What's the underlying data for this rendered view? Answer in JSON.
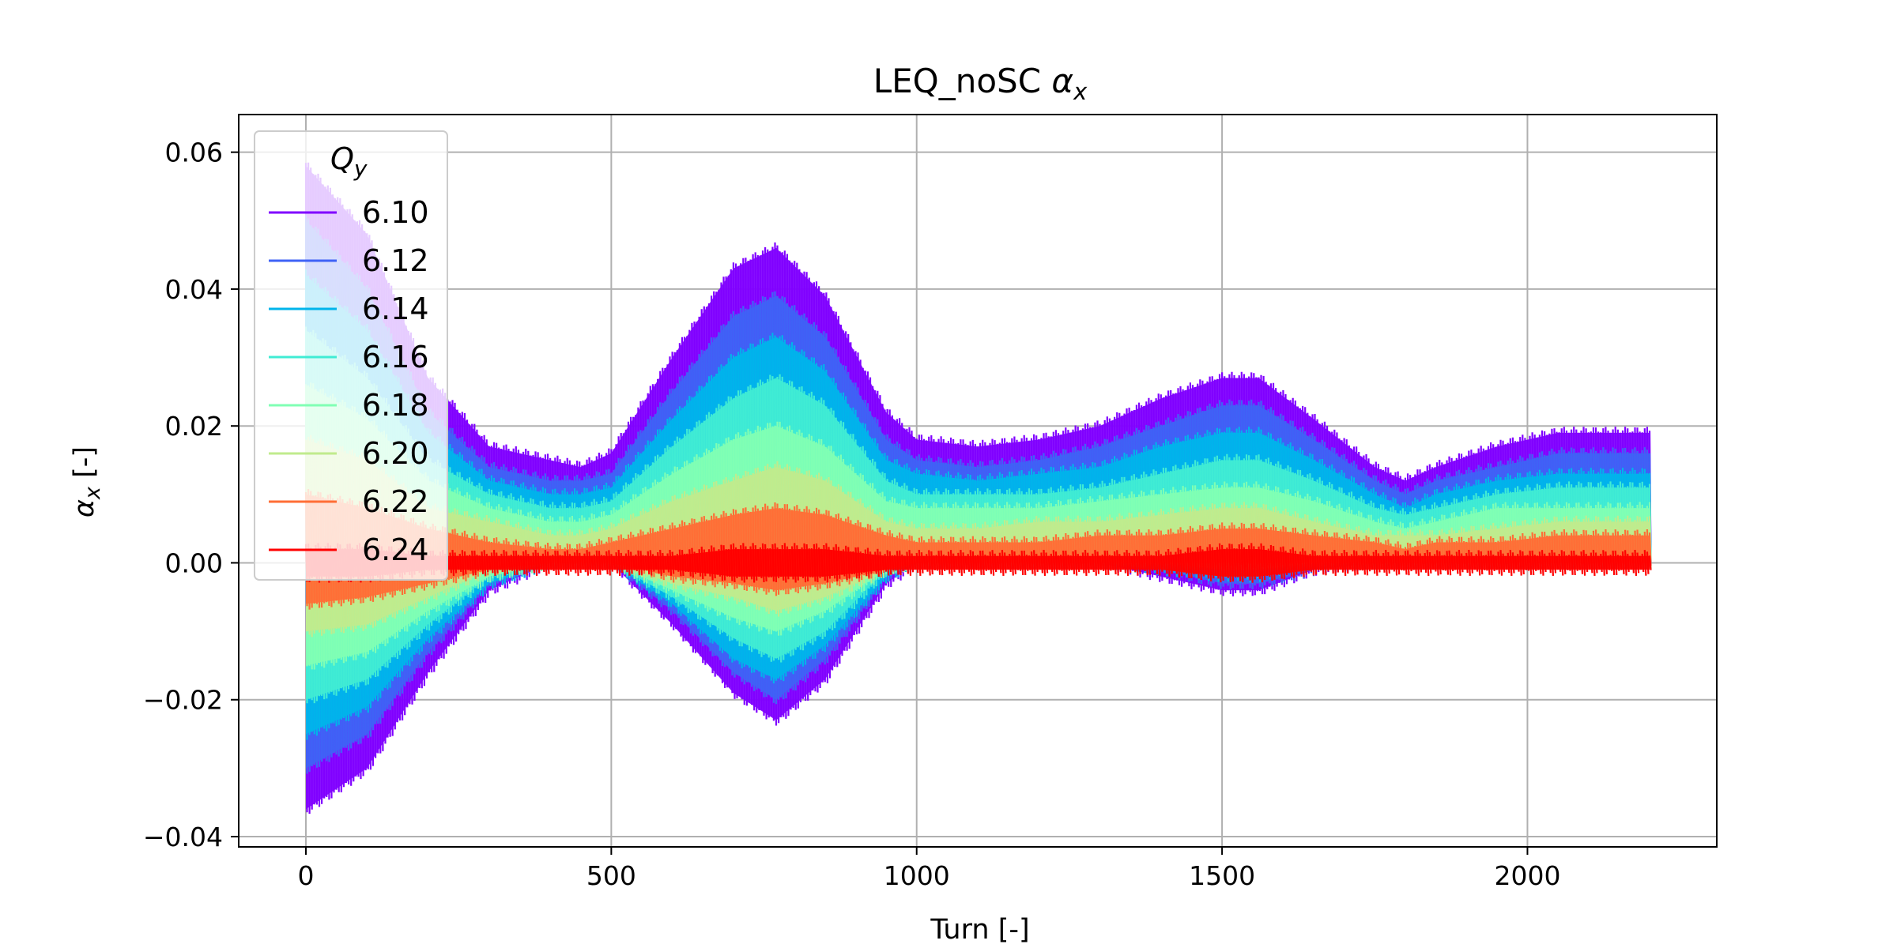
{
  "chart_data": {
    "type": "line",
    "title": "LEQ_noSC",
    "title_symbol": "α",
    "title_symbol_sub": "x",
    "xlabel": "Turn [-]",
    "ylabel_symbol": "α",
    "ylabel_symbol_sub": "x",
    "ylabel_suffix": " [-]",
    "xlim": [
      -110,
      2310
    ],
    "ylim": [
      -0.0415,
      0.0655
    ],
    "xticks": [
      0,
      500,
      1000,
      1500,
      2000
    ],
    "xtick_labels": [
      "0",
      "500",
      "1000",
      "1500",
      "2000"
    ],
    "yticks": [
      -0.04,
      -0.02,
      0.0,
      0.02,
      0.04,
      0.06
    ],
    "ytick_labels": [
      "−0.04",
      "−0.02",
      "0.00",
      "0.02",
      "0.04",
      "0.06"
    ],
    "grid": true,
    "legend": {
      "title": "Q",
      "title_sub": "y",
      "placement": "upper-left"
    },
    "oscillation_half_width": 0.0018,
    "x": [
      0,
      100,
      200,
      300,
      400,
      450,
      500,
      600,
      700,
      770,
      850,
      950,
      1000,
      1100,
      1200,
      1300,
      1400,
      1500,
      1560,
      1650,
      1750,
      1800,
      1850,
      1950,
      2050,
      2150,
      2200
    ],
    "series": [
      {
        "name": "6.10",
        "color": "#8000ff",
        "upper": [
          0.058,
          0.048,
          0.027,
          0.017,
          0.015,
          0.014,
          0.016,
          0.03,
          0.043,
          0.046,
          0.039,
          0.022,
          0.018,
          0.017,
          0.018,
          0.02,
          0.024,
          0.027,
          0.027,
          0.021,
          0.014,
          0.012,
          0.014,
          0.017,
          0.019,
          0.019,
          0.019
        ],
        "lower": [
          -0.036,
          -0.03,
          -0.016,
          -0.004,
          0.0,
          0.0,
          0.0,
          -0.009,
          -0.019,
          -0.023,
          -0.017,
          -0.003,
          0.0,
          0.0,
          0.0,
          0.0,
          -0.002,
          -0.004,
          -0.004,
          -0.001,
          0.0,
          0.0,
          0.0,
          0.0,
          0.0,
          0.0,
          0.0
        ]
      },
      {
        "name": "6.12",
        "color": "#3f62f6",
        "upper": [
          0.05,
          0.04,
          0.022,
          0.014,
          0.012,
          0.012,
          0.013,
          0.025,
          0.036,
          0.039,
          0.033,
          0.018,
          0.015,
          0.014,
          0.015,
          0.017,
          0.02,
          0.023,
          0.023,
          0.018,
          0.012,
          0.01,
          0.012,
          0.014,
          0.016,
          0.016,
          0.016
        ],
        "lower": [
          -0.03,
          -0.025,
          -0.013,
          -0.003,
          0.0,
          0.0,
          0.0,
          -0.007,
          -0.016,
          -0.02,
          -0.014,
          -0.002,
          0.0,
          0.0,
          0.0,
          0.0,
          -0.001,
          -0.003,
          -0.003,
          -0.001,
          0.0,
          0.0,
          0.0,
          0.0,
          0.0,
          0.0,
          0.0
        ]
      },
      {
        "name": "6.14",
        "color": "#00b4eb",
        "upper": [
          0.042,
          0.034,
          0.019,
          0.012,
          0.01,
          0.01,
          0.011,
          0.021,
          0.03,
          0.033,
          0.028,
          0.015,
          0.013,
          0.012,
          0.013,
          0.014,
          0.017,
          0.019,
          0.019,
          0.015,
          0.01,
          0.008,
          0.01,
          0.012,
          0.013,
          0.013,
          0.013
        ],
        "lower": [
          -0.025,
          -0.021,
          -0.011,
          -0.003,
          0.0,
          0.0,
          0.0,
          -0.006,
          -0.014,
          -0.017,
          -0.012,
          -0.002,
          0.0,
          0.0,
          0.0,
          0.0,
          -0.001,
          -0.002,
          -0.002,
          0.0,
          0.0,
          0.0,
          0.0,
          0.0,
          0.0,
          0.0,
          0.0
        ]
      },
      {
        "name": "6.16",
        "color": "#40ecd4",
        "upper": [
          0.034,
          0.027,
          0.015,
          0.01,
          0.008,
          0.008,
          0.009,
          0.017,
          0.024,
          0.027,
          0.023,
          0.012,
          0.01,
          0.01,
          0.01,
          0.011,
          0.013,
          0.015,
          0.015,
          0.012,
          0.008,
          0.007,
          0.008,
          0.01,
          0.011,
          0.011,
          0.011
        ],
        "lower": [
          -0.02,
          -0.017,
          -0.009,
          -0.002,
          0.0,
          0.0,
          0.0,
          -0.005,
          -0.011,
          -0.014,
          -0.01,
          -0.001,
          0.0,
          0.0,
          0.0,
          0.0,
          0.0,
          -0.001,
          -0.001,
          0.0,
          0.0,
          0.0,
          0.0,
          0.0,
          0.0,
          0.0,
          0.0
        ]
      },
      {
        "name": "6.18",
        "color": "#80ffb4",
        "upper": [
          0.026,
          0.021,
          0.012,
          0.008,
          0.006,
          0.006,
          0.007,
          0.013,
          0.018,
          0.02,
          0.017,
          0.009,
          0.008,
          0.008,
          0.008,
          0.009,
          0.01,
          0.011,
          0.011,
          0.009,
          0.006,
          0.005,
          0.006,
          0.008,
          0.008,
          0.008,
          0.008
        ],
        "lower": [
          -0.015,
          -0.013,
          -0.007,
          -0.002,
          0.0,
          0.0,
          0.0,
          -0.004,
          -0.008,
          -0.01,
          -0.007,
          -0.001,
          0.0,
          0.0,
          0.0,
          0.0,
          0.0,
          -0.001,
          -0.001,
          0.0,
          0.0,
          0.0,
          0.0,
          0.0,
          0.0,
          0.0,
          0.0
        ]
      },
      {
        "name": "6.20",
        "color": "#c0eb8d",
        "upper": [
          0.018,
          0.015,
          0.008,
          0.006,
          0.004,
          0.004,
          0.005,
          0.009,
          0.012,
          0.014,
          0.012,
          0.006,
          0.005,
          0.005,
          0.006,
          0.006,
          0.007,
          0.008,
          0.008,
          0.006,
          0.004,
          0.004,
          0.004,
          0.005,
          0.006,
          0.006,
          0.006
        ],
        "lower": [
          -0.01,
          -0.009,
          -0.005,
          -0.001,
          0.0,
          0.0,
          0.0,
          -0.003,
          -0.005,
          -0.007,
          -0.005,
          -0.001,
          0.0,
          0.0,
          0.0,
          0.0,
          0.0,
          0.0,
          0.0,
          0.0,
          0.0,
          0.0,
          0.0,
          0.0,
          0.0,
          0.0,
          0.0
        ]
      },
      {
        "name": "6.22",
        "color": "#ff6e36",
        "upper": [
          0.01,
          0.008,
          0.005,
          0.003,
          0.002,
          0.002,
          0.003,
          0.005,
          0.007,
          0.008,
          0.007,
          0.004,
          0.003,
          0.003,
          0.003,
          0.004,
          0.004,
          0.005,
          0.005,
          0.004,
          0.003,
          0.002,
          0.003,
          0.003,
          0.004,
          0.004,
          0.004
        ],
        "lower": [
          -0.006,
          -0.005,
          -0.003,
          -0.001,
          0.0,
          0.0,
          0.0,
          -0.002,
          -0.003,
          -0.004,
          -0.003,
          -0.001,
          0.0,
          0.0,
          0.0,
          0.0,
          0.0,
          0.0,
          0.0,
          0.0,
          0.0,
          0.0,
          0.0,
          0.0,
          0.0,
          0.0,
          0.0
        ]
      },
      {
        "name": "6.24",
        "color": "#ff0000",
        "upper": [
          0.002,
          0.002,
          0.001,
          0.001,
          0.001,
          0.001,
          0.001,
          0.001,
          0.002,
          0.002,
          0.002,
          0.001,
          0.001,
          0.001,
          0.001,
          0.001,
          0.001,
          0.002,
          0.002,
          0.001,
          0.001,
          0.001,
          0.001,
          0.001,
          0.001,
          0.001,
          0.001
        ],
        "lower": [
          -0.002,
          -0.002,
          -0.001,
          -0.001,
          -0.001,
          -0.001,
          -0.001,
          -0.001,
          -0.002,
          -0.002,
          -0.002,
          -0.001,
          -0.001,
          -0.001,
          -0.001,
          -0.001,
          -0.001,
          -0.002,
          -0.002,
          -0.001,
          -0.001,
          -0.001,
          -0.001,
          -0.001,
          -0.001,
          -0.001,
          -0.001
        ]
      }
    ]
  }
}
